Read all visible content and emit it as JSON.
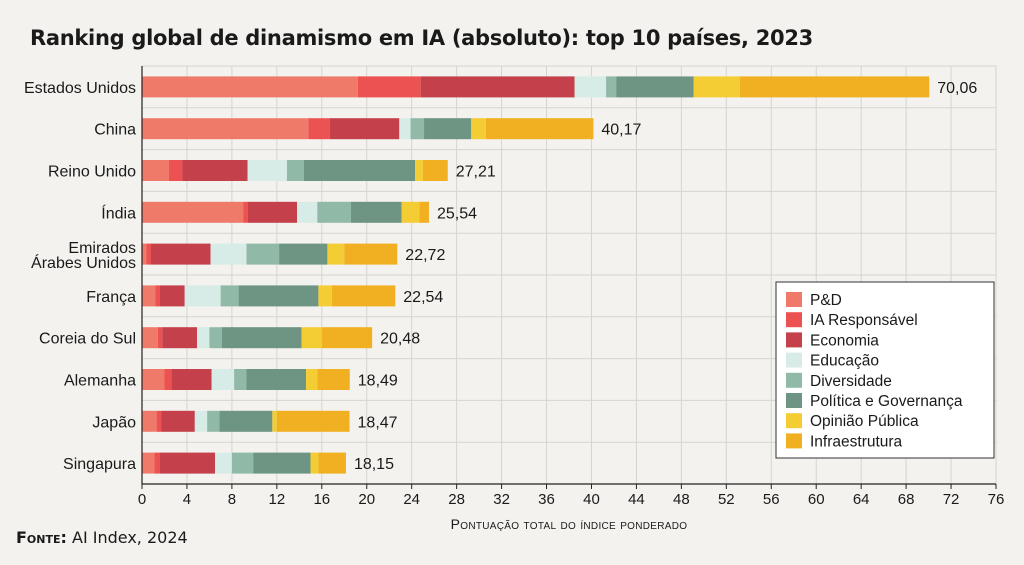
{
  "title": "Ranking global de dinamismo em IA (absoluto): top 10 países, 2023",
  "source": {
    "label": "Fonte:",
    "text": "AI Index, 2024"
  },
  "colors": {
    "background": "#f3f2ee",
    "grid": "#d5d5d0"
  },
  "chart_data": {
    "type": "bar",
    "orientation": "horizontal",
    "stacked": true,
    "title": "Ranking global de dinamismo em IA (absoluto): top 10 países, 2023",
    "xlabel": "Pontuação total do índice ponderado",
    "ylabel": "",
    "xlim": [
      0,
      76
    ],
    "xticks": [
      0,
      4,
      8,
      12,
      16,
      20,
      24,
      28,
      32,
      36,
      40,
      44,
      48,
      52,
      56,
      60,
      64,
      68,
      72,
      76
    ],
    "grid": true,
    "legend_position": "bottom-right",
    "categories": [
      "Estados Unidos",
      "China",
      "Reino Unido",
      "Índia",
      "Emirados Árabes Unidos",
      "França",
      "Coreia do Sul",
      "Alemanha",
      "Japão",
      "Singapura"
    ],
    "category_lines": [
      [
        "Estados Unidos"
      ],
      [
        "China"
      ],
      [
        "Reino Unido"
      ],
      [
        "Índia"
      ],
      [
        "Emirados",
        "Árabes Unidos"
      ],
      [
        "França"
      ],
      [
        "Coreia do Sul"
      ],
      [
        "Alemanha"
      ],
      [
        "Japão"
      ],
      [
        "Singapura"
      ]
    ],
    "totals": [
      70.06,
      40.17,
      27.21,
      25.54,
      22.72,
      22.54,
      20.48,
      18.49,
      18.47,
      18.15
    ],
    "totals_labels": [
      "70,06",
      "40,17",
      "27,21",
      "25,54",
      "22,72",
      "22,54",
      "20,48",
      "18,49",
      "18,47",
      "18,15"
    ],
    "series": [
      {
        "name": "P&D",
        "color": "#f07a6a",
        "values": [
          19.2,
          14.8,
          2.4,
          9.0,
          0.4,
          1.2,
          1.4,
          2.0,
          1.3,
          1.1
        ]
      },
      {
        "name": "IA Responsável",
        "color": "#ec5252",
        "values": [
          5.6,
          1.9,
          1.2,
          0.4,
          0.4,
          0.4,
          0.4,
          0.6,
          0.4,
          0.5
        ]
      },
      {
        "name": "Economia",
        "color": "#c4404a",
        "values": [
          13.7,
          6.2,
          5.8,
          4.4,
          5.3,
          2.2,
          3.1,
          3.6,
          3.0,
          4.9
        ]
      },
      {
        "name": "Educação",
        "color": "#d7ece6",
        "values": [
          2.8,
          1.0,
          3.5,
          1.8,
          3.2,
          3.2,
          1.1,
          2.0,
          1.1,
          1.5
        ]
      },
      {
        "name": "Diversidade",
        "color": "#90b9a8",
        "values": [
          0.9,
          1.2,
          1.5,
          3.0,
          2.9,
          1.6,
          1.1,
          1.1,
          1.1,
          1.9
        ]
      },
      {
        "name": "Política e Governança",
        "color": "#6e9484",
        "values": [
          6.9,
          4.2,
          9.9,
          4.5,
          4.3,
          7.1,
          7.1,
          5.3,
          4.7,
          5.1
        ]
      },
      {
        "name": "Opinião Pública",
        "color": "#f4cd35",
        "values": [
          4.1,
          1.3,
          0.7,
          1.6,
          1.5,
          1.2,
          1.8,
          1.0,
          0.4,
          0.7
        ]
      },
      {
        "name": "Infraestrutura",
        "color": "#f1b021",
        "values": [
          16.86,
          9.57,
          2.21,
          0.84,
          4.72,
          5.64,
          4.48,
          2.89,
          6.47,
          2.45
        ]
      }
    ]
  }
}
